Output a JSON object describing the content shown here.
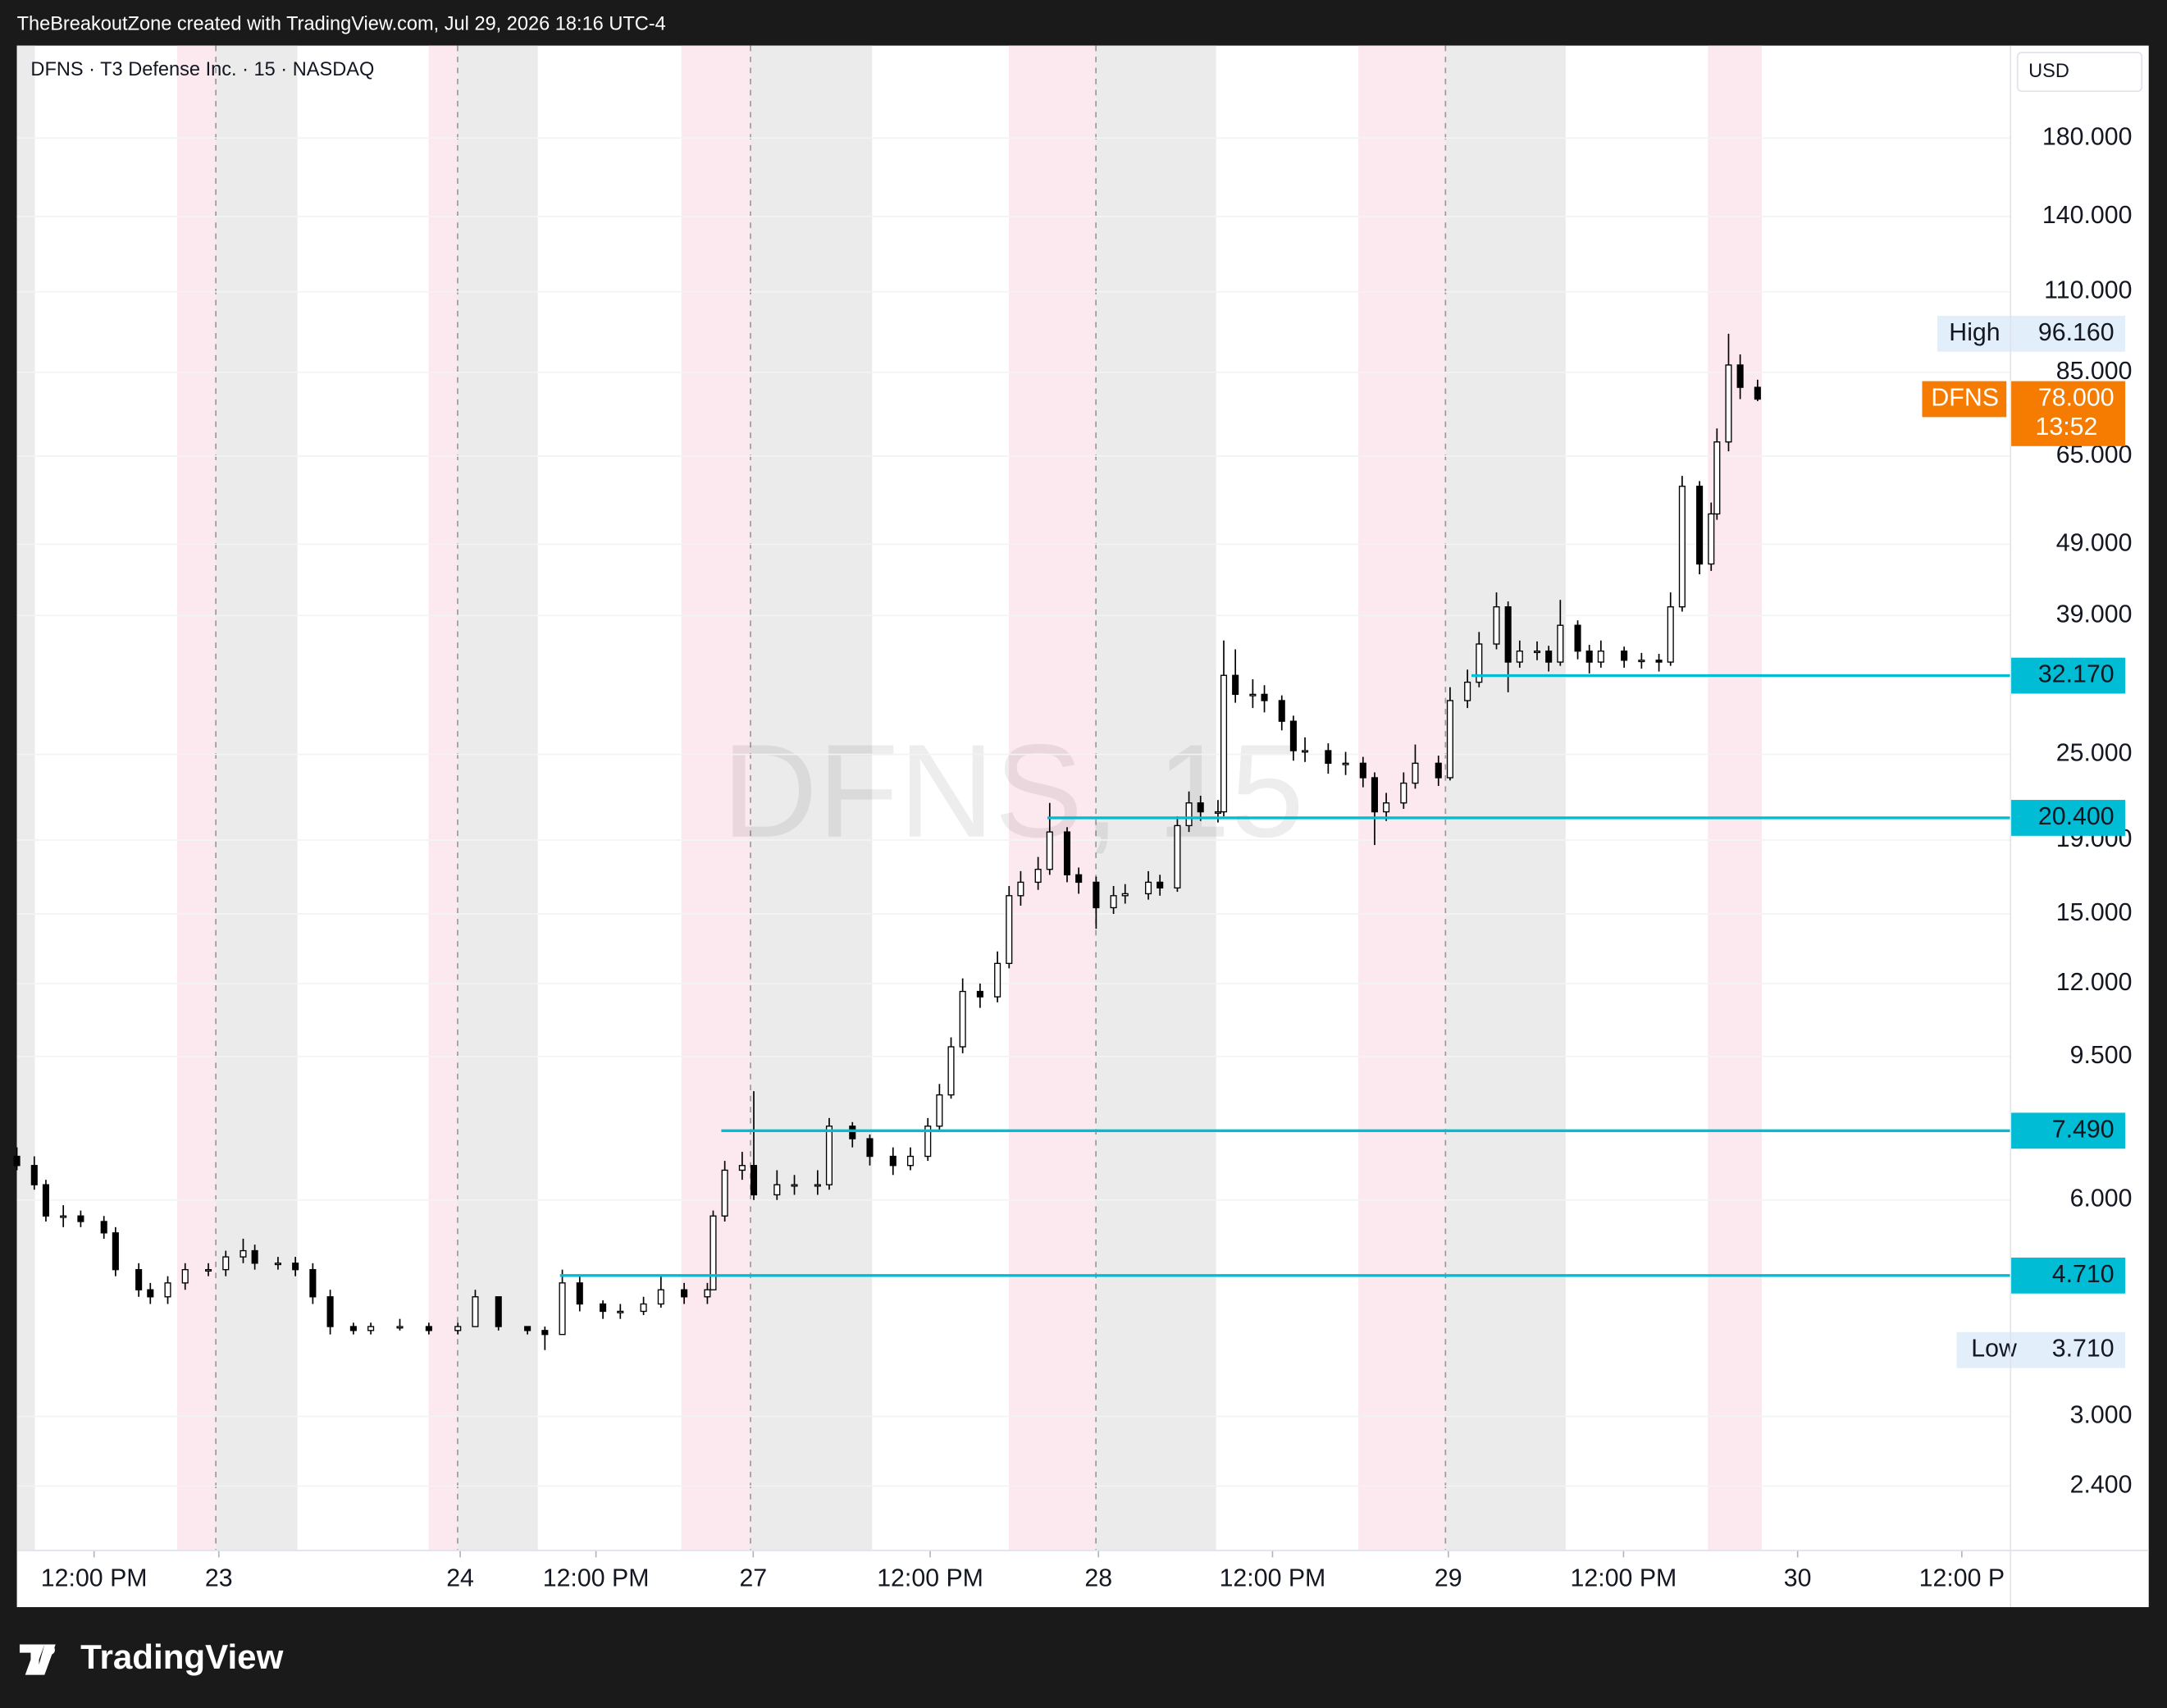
{
  "header": {
    "attribution": "TheBreakoutZone created with TradingView.com, Jul 29, 2026 18:16 UTC-4",
    "symbol_line": "DFNS · T3 Defense Inc. · 15 · NASDAQ",
    "currency": "USD",
    "watermark": "DFNS, 15",
    "brand": "TradingView"
  },
  "chart_data": {
    "type": "candlestick",
    "log_scale": true,
    "grid": true,
    "xlim": [
      0,
      343.6
    ],
    "xticks": [
      {
        "value": 13.3,
        "label": "12:00 PM"
      },
      {
        "value": 34.8,
        "label": "23"
      },
      {
        "value": 76.4,
        "label": "24"
      },
      {
        "value": 99.8,
        "label": "12:00 PM"
      },
      {
        "value": 126.9,
        "label": "27"
      },
      {
        "value": 157.4,
        "label": "12:00 PM"
      },
      {
        "value": 186.4,
        "label": "28"
      },
      {
        "value": 216.4,
        "label": "12:00 PM"
      },
      {
        "value": 246.7,
        "label": "29"
      },
      {
        "value": 276.9,
        "label": "12:00 PM"
      },
      {
        "value": 306.9,
        "label": "30"
      },
      {
        "value": 335.2,
        "label": "12:00 P"
      }
    ],
    "ylim": [
      1.97,
      242
    ],
    "yticks": [
      {
        "value": 180,
        "label": "180.000"
      },
      {
        "value": 140,
        "label": "140.000"
      },
      {
        "value": 110,
        "label": "110.000"
      },
      {
        "value": 85,
        "label": "85.000"
      },
      {
        "value": 65,
        "label": "65.000"
      },
      {
        "value": 49,
        "label": "49.000"
      },
      {
        "value": 39,
        "label": "39.000"
      },
      {
        "value": 25,
        "label": "25.000"
      },
      {
        "value": 19,
        "label": "19.000"
      },
      {
        "value": 15,
        "label": "15.000"
      },
      {
        "value": 12,
        "label": "12.000"
      },
      {
        "value": 9.5,
        "label": "9.500"
      },
      {
        "value": 6,
        "label": "6.000"
      },
      {
        "value": 3,
        "label": "3.000"
      },
      {
        "value": 2.4,
        "label": "2.400"
      }
    ],
    "series": [
      {
        "name": "DFNS",
        "up_color": "#ffffff",
        "down_color": "#000000",
        "wick_color": "#000000",
        "x": [
          0,
          3,
          5,
          8,
          11,
          15,
          17,
          21,
          23,
          26,
          29,
          33,
          36,
          39,
          41,
          45,
          48,
          51,
          54,
          58,
          61,
          66,
          71,
          76,
          79,
          83,
          88,
          91,
          94,
          97,
          101,
          104,
          108,
          111,
          115,
          119,
          120,
          122,
          125,
          127,
          131,
          134,
          138,
          140,
          144,
          147,
          151,
          154,
          157,
          159,
          161,
          163,
          166,
          169,
          171,
          173,
          176,
          178,
          181,
          183,
          186,
          189,
          191,
          195,
          197,
          200,
          202,
          204,
          207,
          208,
          210,
          213,
          215,
          218,
          220,
          222,
          226,
          229,
          232,
          234,
          236,
          239,
          241,
          245,
          247,
          250,
          252,
          255,
          257,
          259,
          262,
          264,
          266,
          269,
          271,
          273,
          277,
          280,
          283,
          285,
          287,
          290,
          292,
          293,
          295,
          297,
          300
        ],
        "open": [
          6.9,
          6.7,
          6.3,
          5.7,
          5.7,
          5.6,
          5.4,
          4.8,
          4.5,
          4.4,
          4.6,
          4.8,
          4.8,
          5.0,
          5.1,
          4.9,
          4.9,
          4.8,
          4.4,
          4.0,
          3.95,
          4.0,
          4.0,
          3.95,
          4.0,
          4.4,
          4.0,
          3.95,
          3.9,
          4.6,
          4.3,
          4.2,
          4.2,
          4.3,
          4.5,
          4.4,
          4.5,
          5.7,
          6.6,
          6.7,
          6.1,
          6.3,
          6.3,
          6.3,
          7.6,
          7.3,
          6.9,
          6.7,
          6.9,
          7.6,
          8.4,
          9.8,
          11.7,
          11.5,
          12.8,
          15.9,
          16.6,
          17.3,
          19.5,
          17.0,
          16.6,
          15.3,
          15.9,
          16.0,
          16.6,
          16.3,
          19.9,
          21.4,
          20.8,
          20.8,
          32.2,
          30.3,
          30.3,
          29.7,
          27.8,
          25.3,
          25.3,
          24.3,
          24.3,
          23.2,
          20.8,
          21.4,
          22.8,
          24.3,
          23.2,
          29.7,
          31.5,
          35.6,
          40.1,
          33.6,
          34.8,
          34.8,
          33.6,
          37.8,
          34.8,
          33.6,
          34.8,
          33.8,
          33.8,
          33.6,
          40.1,
          59,
          46,
          54,
          68,
          87,
          81
        ],
        "high": [
          7.1,
          6.9,
          6.4,
          5.9,
          5.8,
          5.7,
          5.5,
          4.9,
          4.6,
          4.7,
          4.9,
          4.9,
          5.1,
          5.3,
          5.2,
          5.0,
          5.0,
          4.9,
          4.5,
          4.05,
          4.05,
          4.1,
          4.05,
          4.05,
          4.5,
          4.4,
          4.0,
          4.0,
          4.8,
          4.7,
          4.35,
          4.3,
          4.4,
          4.7,
          4.6,
          4.6,
          5.8,
          6.8,
          7.0,
          8.5,
          6.6,
          6.5,
          6.6,
          7.8,
          7.7,
          7.4,
          7.1,
          7.1,
          7.8,
          8.7,
          10.1,
          12.2,
          12.0,
          13.3,
          16.4,
          17.2,
          18.0,
          21.4,
          19.8,
          17.4,
          16.9,
          16.4,
          16.5,
          17.2,
          17.0,
          20.5,
          22.2,
          21.9,
          21.6,
          36.0,
          35.0,
          31.8,
          31.2,
          30.2,
          28.3,
          26.4,
          25.9,
          25.2,
          24.8,
          23.6,
          22.1,
          23.6,
          25.8,
          24.9,
          31.0,
          32.8,
          37.0,
          42.0,
          40.8,
          36.0,
          35.9,
          35.4,
          41.0,
          38.4,
          35.5,
          36.0,
          35.3,
          34.6,
          34.5,
          42.0,
          61,
          60,
          56,
          71,
          96.16,
          90,
          83
        ],
        "low": [
          6.6,
          6.2,
          5.6,
          5.5,
          5.5,
          5.3,
          4.7,
          4.4,
          4.3,
          4.3,
          4.5,
          4.7,
          4.7,
          4.9,
          4.8,
          4.8,
          4.7,
          4.3,
          3.9,
          3.9,
          3.9,
          3.95,
          3.9,
          3.9,
          4.0,
          3.95,
          3.9,
          3.71,
          3.9,
          4.2,
          4.1,
          4.1,
          4.15,
          4.25,
          4.3,
          4.3,
          4.5,
          5.6,
          6.4,
          6.0,
          6.0,
          6.1,
          6.1,
          6.2,
          7.1,
          6.7,
          6.5,
          6.6,
          6.8,
          7.5,
          8.3,
          9.6,
          11.1,
          11.3,
          12.6,
          15.4,
          16.2,
          17.0,
          16.6,
          16.0,
          14.3,
          15.0,
          15.5,
          15.7,
          15.9,
          16.1,
          19.5,
          20.2,
          20.1,
          20.5,
          29.5,
          29.0,
          28.6,
          27.0,
          24.5,
          24.4,
          23.5,
          23.4,
          22.5,
          18.7,
          20.2,
          21.0,
          22.4,
          22.6,
          23.0,
          29.0,
          31.0,
          35.0,
          30.5,
          33.0,
          33.8,
          32.6,
          33.2,
          33.9,
          32.4,
          33.0,
          33.0,
          32.9,
          32.6,
          33.2,
          39.5,
          44.5,
          45,
          53,
          66,
          78,
          77.5
        ],
        "close": [
          6.7,
          6.3,
          5.7,
          5.7,
          5.6,
          5.4,
          4.8,
          4.5,
          4.4,
          4.6,
          4.8,
          4.8,
          5.0,
          5.1,
          4.9,
          4.9,
          4.8,
          4.4,
          4.0,
          3.95,
          4.0,
          4.0,
          3.95,
          4.0,
          4.4,
          4.0,
          3.95,
          3.9,
          4.6,
          4.3,
          4.2,
          4.2,
          4.3,
          4.5,
          4.4,
          4.5,
          5.7,
          6.6,
          6.7,
          6.1,
          6.3,
          6.3,
          6.3,
          7.6,
          7.3,
          6.9,
          6.7,
          6.9,
          7.6,
          8.4,
          9.8,
          11.7,
          11.5,
          12.8,
          15.9,
          16.6,
          17.3,
          19.5,
          17.0,
          16.6,
          15.3,
          15.9,
          16.0,
          16.6,
          16.3,
          19.9,
          21.4,
          20.8,
          20.8,
          32.2,
          30.3,
          30.3,
          29.7,
          27.8,
          25.3,
          25.3,
          24.3,
          24.3,
          23.2,
          20.8,
          21.4,
          22.8,
          24.3,
          23.2,
          29.7,
          31.5,
          35.6,
          40.1,
          33.6,
          34.8,
          34.8,
          33.6,
          37.8,
          34.8,
          33.6,
          34.8,
          33.8,
          33.8,
          33.6,
          40.1,
          59,
          46,
          54,
          68,
          87,
          81,
          78
        ]
      }
    ],
    "levels": [
      {
        "value": 32.17,
        "label": "32.170",
        "x": 250.7,
        "color": "#00bcd4"
      },
      {
        "value": 20.4,
        "label": "20.400",
        "x": 177.6,
        "color": "#00bcd4"
      },
      {
        "value": 7.49,
        "label": "7.490",
        "x": 121.4,
        "color": "#00bcd4"
      },
      {
        "value": 4.71,
        "label": "4.710",
        "x": 93.6,
        "color": "#00bcd4"
      }
    ],
    "high": {
      "text": "High",
      "value": 96.16,
      "label": "96.160"
    },
    "low": {
      "text": "Low",
      "value": 3.71,
      "label": "3.710"
    },
    "last": {
      "value": 78,
      "label": "78.000",
      "countdown": "13:52",
      "color": "#f57c00"
    }
  }
}
